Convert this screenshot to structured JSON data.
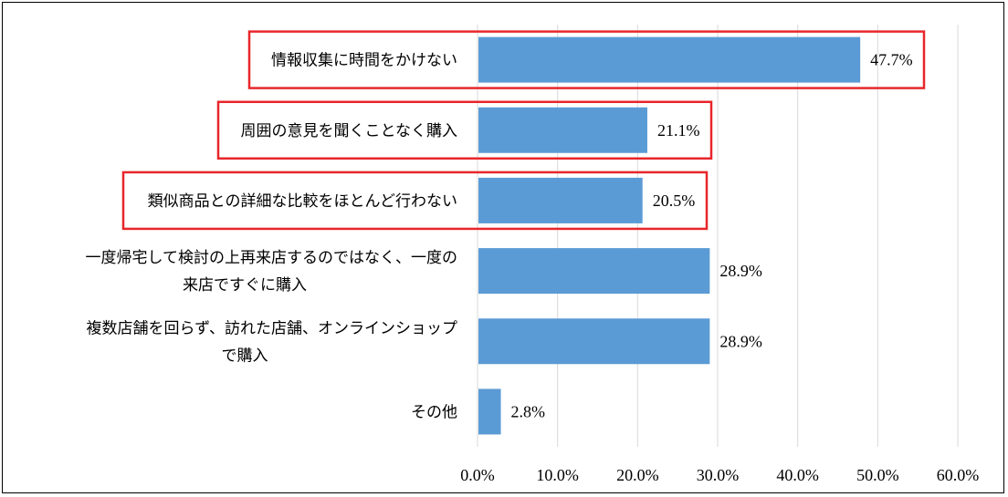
{
  "chart_data": {
    "type": "bar",
    "orientation": "horizontal",
    "categories": [
      [
        "情報収集に時間をかけない"
      ],
      [
        "周囲の意見を聞くことなく購入"
      ],
      [
        "類似商品との詳細な比較をほとんど行わない"
      ],
      [
        "一度帰宅して検討の上再来店するのではなく、一度の",
        "来店ですぐに購入"
      ],
      [
        "複数店舗を回らず、訪れた店舗、オンラインショップ",
        "で購入"
      ],
      [
        "その他"
      ]
    ],
    "values": [
      47.7,
      21.1,
      20.5,
      28.9,
      28.9,
      2.8
    ],
    "value_labels": [
      "47.7%",
      "21.1%",
      "20.5%",
      "28.9%",
      "28.9%",
      "2.8%"
    ],
    "highlighted": [
      true,
      true,
      true,
      false,
      false,
      false
    ],
    "xlim": [
      0,
      60
    ],
    "ticks": [
      0,
      10,
      20,
      30,
      40,
      50,
      60
    ],
    "tick_labels": [
      "0.0%",
      "10.0%",
      "20.0%",
      "30.0%",
      "40.0%",
      "50.0%",
      "60.0%"
    ],
    "grid": true,
    "bar_color": "#5b9bd5",
    "highlight_color": "#e8262b",
    "grid_color": "#d9d9d9"
  }
}
